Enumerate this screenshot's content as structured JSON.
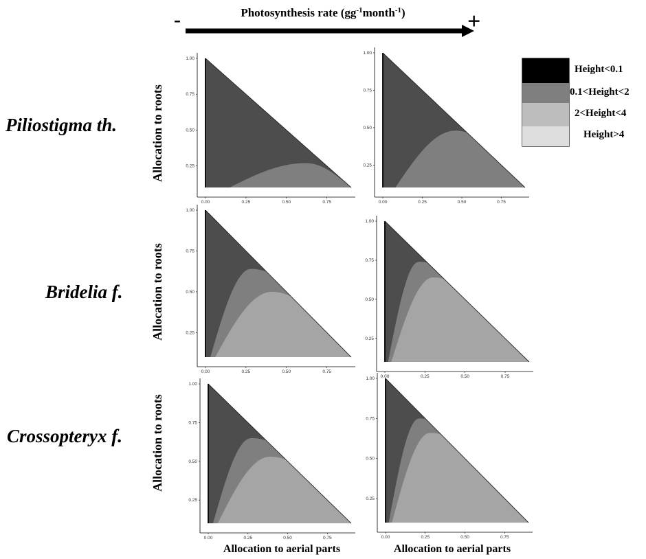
{
  "header": {
    "title": "Photosynthesis rate (gg-1month-1)",
    "title_main": "Photosynthesis rate (gg",
    "title_sup1": "-1",
    "title_mid": "month",
    "title_sup2": "-1",
    "title_end": ")",
    "minus_label": "-",
    "plus_label": "+"
  },
  "legend": {
    "position": "top-right",
    "entries": [
      {
        "label": "Height<0.1",
        "color": "#000000"
      },
      {
        "label": "0.1<Height<2",
        "color": "#7f7f7f"
      },
      {
        "label": "2<Height<4",
        "color": "#bdbdbd"
      },
      {
        "label": "Height>4",
        "color": "#dedede"
      }
    ]
  },
  "species": [
    "Piliostigma th.",
    "Bridelia f.",
    "Crossopteryx f."
  ],
  "ylabel": "Allocation to roots",
  "xlabel": "Allocation to aerial parts",
  "colors": {
    "dark_region": "#4d4d4d",
    "mid_region": "#7f7f7f",
    "light_region": "#a5a5a5",
    "edge": "#000000"
  },
  "chart_data": [
    {
      "type": "area",
      "species": "Piliostigma th.",
      "photosynthesis": "low",
      "xticks": [
        "0.00",
        "0.25",
        "0.50",
        "0.75"
      ],
      "yticks": [
        "0.25",
        "0.50",
        "0.75",
        "1.00"
      ],
      "xlim": [
        0,
        0.9
      ],
      "ylim": [
        0.1,
        1.0
      ],
      "regions": [
        {
          "class": "0.1<Height<2",
          "x_start": 0.15,
          "x_end": 0.9,
          "peak_x": 0.62,
          "peak_y": 0.27
        }
      ]
    },
    {
      "type": "area",
      "species": "Piliostigma th.",
      "photosynthesis": "high",
      "xticks": [
        "0.00",
        "0.25",
        "0.50",
        "0.75"
      ],
      "yticks": [
        "0.25",
        "0.50",
        "0.75",
        "1.00"
      ],
      "xlim": [
        0,
        0.9
      ],
      "ylim": [
        0.1,
        1.0
      ],
      "regions": [
        {
          "class": "0.1<Height<2",
          "x_start": 0.08,
          "x_end": 0.9,
          "peak_x": 0.46,
          "peak_y": 0.48
        }
      ]
    },
    {
      "type": "area",
      "species": "Bridelia f.",
      "photosynthesis": "low",
      "xticks": [
        "0.00",
        "0.25",
        "0.50",
        "0.75"
      ],
      "yticks": [
        "0.25",
        "0.50",
        "0.75",
        "1.00"
      ],
      "xlim": [
        0,
        0.9
      ],
      "ylim": [
        0.1,
        1.0
      ],
      "regions": [
        {
          "class": "0.1<Height<2",
          "x_start": 0.03,
          "x_end": 0.9,
          "peak_x": 0.28,
          "peak_y": 0.64
        },
        {
          "class": "2<Height<4",
          "x_start": 0.06,
          "x_end": 0.9,
          "peak_x": 0.41,
          "peak_y": 0.5
        }
      ]
    },
    {
      "type": "area",
      "species": "Bridelia f.",
      "photosynthesis": "high",
      "xticks": [
        "0.00",
        "0.25",
        "0.50",
        "0.75"
      ],
      "yticks": [
        "0.25",
        "0.50",
        "0.75",
        "1.00"
      ],
      "xlim": [
        0,
        0.9
      ],
      "ylim": [
        0.1,
        1.0
      ],
      "regions": [
        {
          "class": "0.1<Height<2",
          "x_start": 0.02,
          "x_end": 0.9,
          "peak_x": 0.21,
          "peak_y": 0.74
        },
        {
          "class": "2<Height<4",
          "x_start": 0.04,
          "x_end": 0.9,
          "peak_x": 0.3,
          "peak_y": 0.64
        }
      ]
    },
    {
      "type": "area",
      "species": "Crossopteryx f.",
      "photosynthesis": "low",
      "xticks": [
        "0.00",
        "0.25",
        "0.50",
        "0.75"
      ],
      "yticks": [
        "0.25",
        "0.50",
        "0.75",
        "1.00"
      ],
      "xlim": [
        0,
        0.9
      ],
      "ylim": [
        0.1,
        1.0
      ],
      "regions": [
        {
          "class": "0.1<Height<2",
          "x_start": 0.03,
          "x_end": 0.9,
          "peak_x": 0.27,
          "peak_y": 0.65
        },
        {
          "class": "2<Height<4",
          "x_start": 0.06,
          "x_end": 0.9,
          "peak_x": 0.39,
          "peak_y": 0.53
        }
      ]
    },
    {
      "type": "area",
      "species": "Crossopteryx f.",
      "photosynthesis": "high",
      "xticks": [
        "0.00",
        "0.25",
        "0.50",
        "0.75"
      ],
      "yticks": [
        "0.25",
        "0.50",
        "0.75",
        "1.00"
      ],
      "xlim": [
        0,
        0.9
      ],
      "ylim": [
        0.1,
        1.0
      ],
      "regions": [
        {
          "class": "0.1<Height<2",
          "x_start": 0.02,
          "x_end": 0.9,
          "peak_x": 0.21,
          "peak_y": 0.75
        },
        {
          "class": "2<Height<4",
          "x_start": 0.04,
          "x_end": 0.9,
          "peak_x": 0.28,
          "peak_y": 0.66
        }
      ]
    }
  ]
}
